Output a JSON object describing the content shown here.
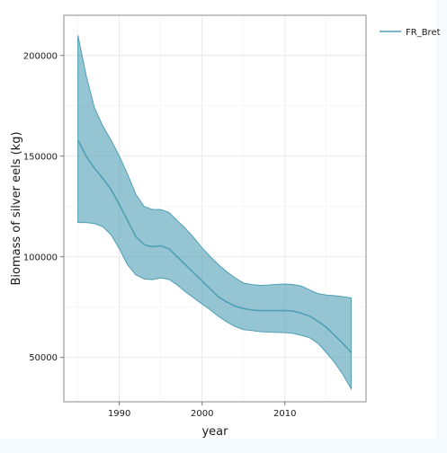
{
  "chart_data": {
    "type": "area",
    "xlabel": "year",
    "ylabel": "Biomass of silver eels (kg)",
    "xlim": [
      1983.3,
      2019.8
    ],
    "ylim": [
      28000,
      220000
    ],
    "x_ticks": [
      1990,
      2000,
      2010
    ],
    "y_ticks": [
      50000,
      100000,
      150000,
      200000
    ],
    "x_tick_labels": [
      "1990",
      "2000",
      "2010"
    ],
    "y_tick_labels": [
      "50000",
      "100000",
      "150000",
      "200000"
    ],
    "grid": true,
    "legend_position": "top-right",
    "series": [
      {
        "name": "FR_Bret",
        "color": "#4f9fb5",
        "x": [
          1985,
          1986,
          1987,
          1988,
          1989,
          1990,
          1991,
          1992,
          1993,
          1994,
          1995,
          1996,
          1997,
          1998,
          1999,
          2000,
          2001,
          2002,
          2003,
          2004,
          2005,
          2006,
          2007,
          2008,
          2009,
          2010,
          2011,
          2012,
          2013,
          2014,
          2015,
          2016,
          2017,
          2018
        ],
        "mean": [
          158000,
          150000,
          144000,
          139000,
          133500,
          126000,
          118000,
          110000,
          106000,
          105000,
          105500,
          104000,
          100000,
          96000,
          92000,
          88000,
          84000,
          80000,
          77500,
          75500,
          74300,
          73600,
          73300,
          73300,
          73300,
          73300,
          73000,
          72000,
          70500,
          68000,
          65000,
          61000,
          57000,
          52500
        ],
        "lower": [
          117000,
          117000,
          116500,
          115000,
          111000,
          104000,
          96000,
          91000,
          89000,
          88700,
          89500,
          88800,
          86000,
          82600,
          79600,
          76600,
          73600,
          70400,
          67600,
          65400,
          63800,
          63400,
          62800,
          62600,
          62500,
          62300,
          62000,
          61000,
          59800,
          57000,
          52500,
          47500,
          41500,
          34500
        ],
        "upper": [
          210000,
          190000,
          174000,
          165000,
          158000,
          150000,
          141000,
          131000,
          125000,
          123500,
          123500,
          122000,
          118000,
          114000,
          109500,
          104500,
          100000,
          96000,
          92500,
          89500,
          87000,
          86200,
          85800,
          86000,
          86300,
          86500,
          86200,
          85500,
          83500,
          81700,
          81000,
          80700,
          80200,
          79600
        ]
      }
    ]
  }
}
